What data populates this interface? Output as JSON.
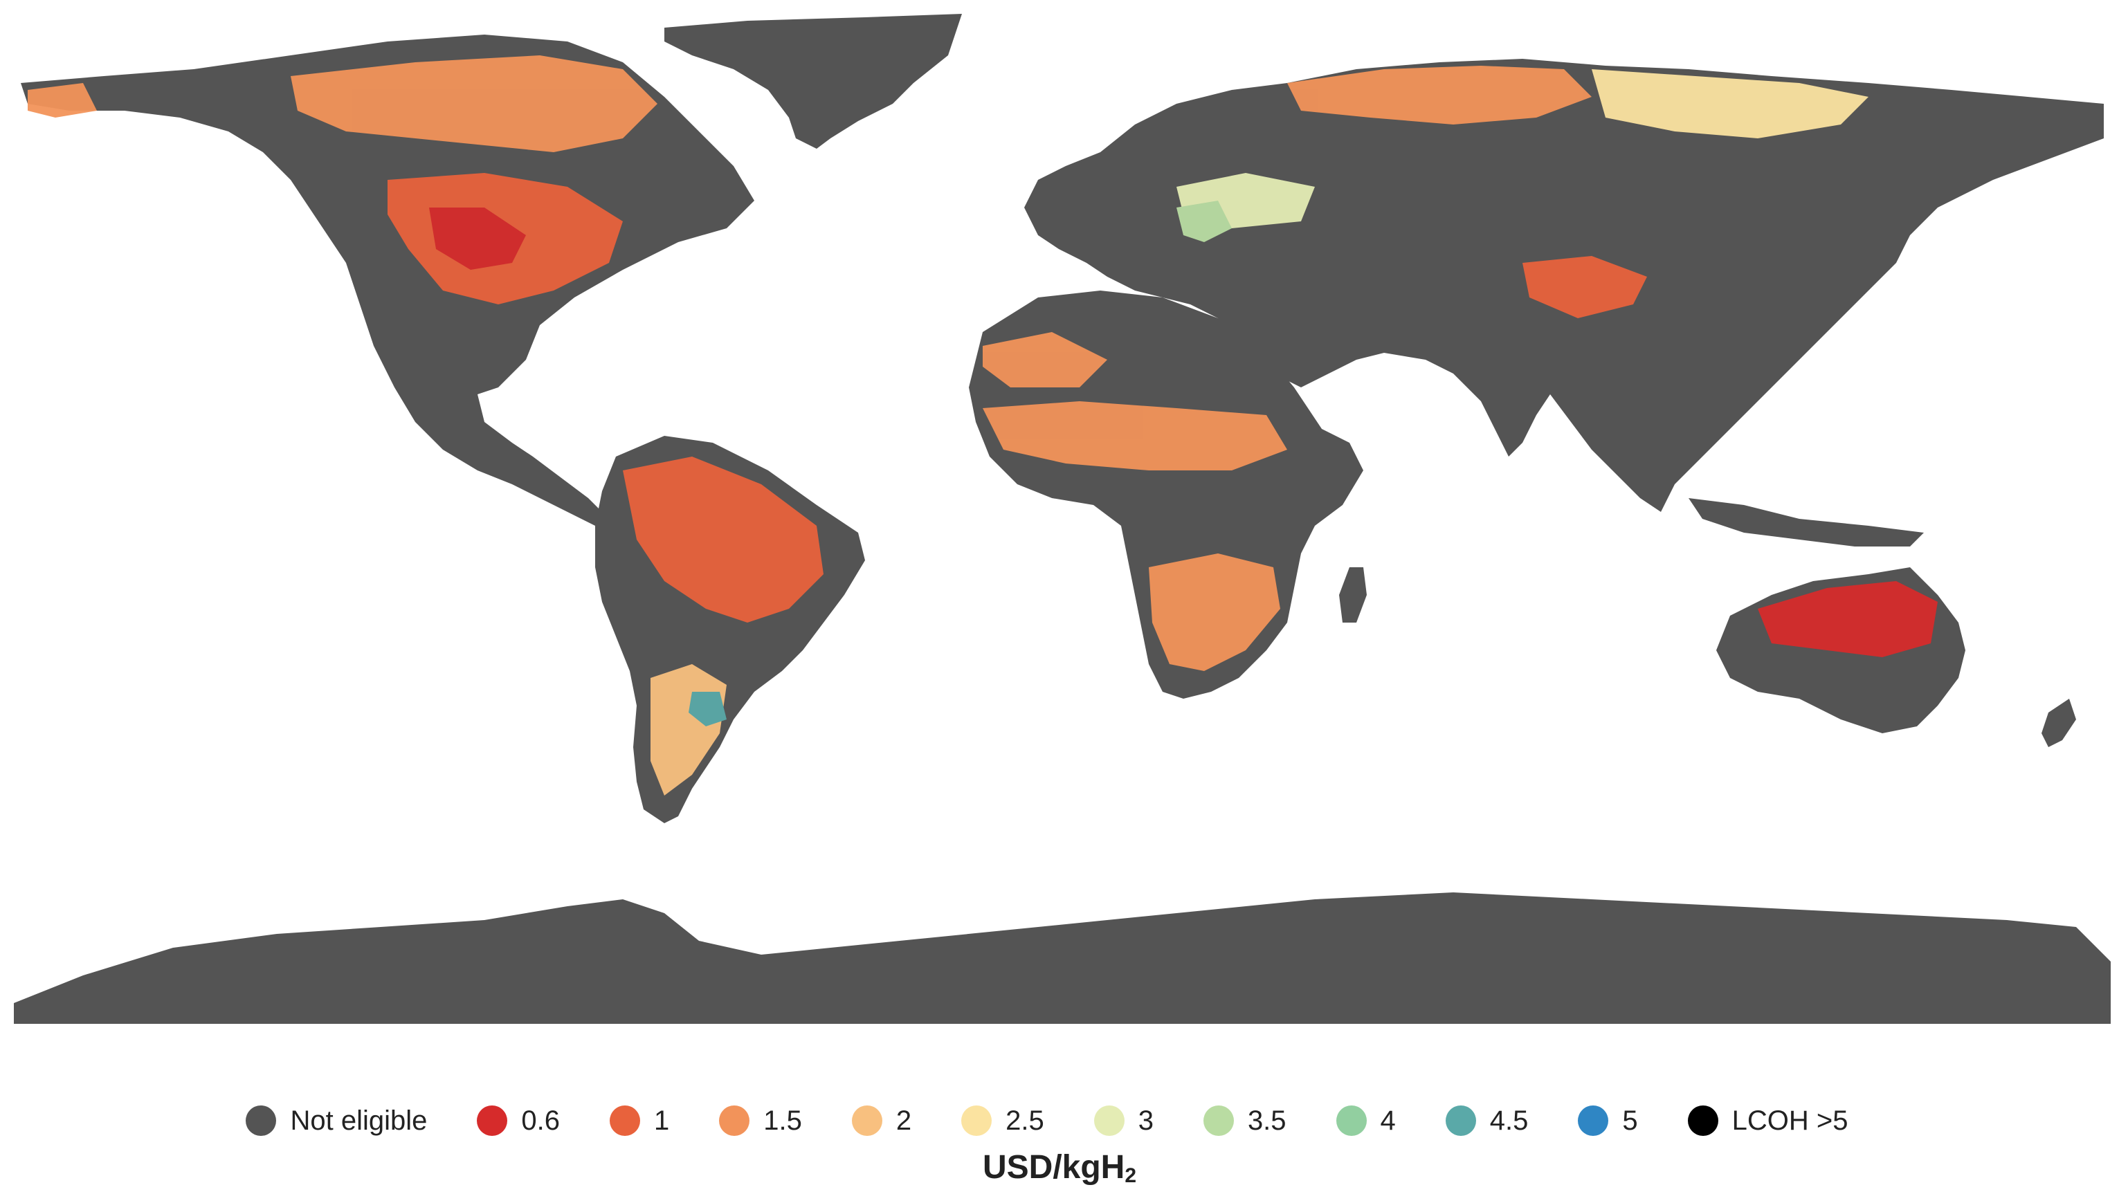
{
  "map": {
    "colors": {
      "land_not_eligible": "#545454",
      "c06": "#d62b2b",
      "c1": "#e8623c",
      "c15": "#f2935a",
      "c2": "#f8c07f",
      "c25": "#fbe3a0",
      "c3": "#e4ecb4",
      "c35": "#b9dca2",
      "c4": "#92cfa0",
      "c45": "#5aa9a8",
      "c5": "#2f86c4",
      "lcoh_gt5": "#000000"
    }
  },
  "legend": {
    "items": [
      {
        "label": "Not eligible",
        "color": "#545454"
      },
      {
        "label": "0.6",
        "color": "#d62b2b"
      },
      {
        "label": "1",
        "color": "#e8623c"
      },
      {
        "label": "1.5",
        "color": "#f2935a"
      },
      {
        "label": "2",
        "color": "#f8c07f"
      },
      {
        "label": "2.5",
        "color": "#fbe3a0"
      },
      {
        "label": "3",
        "color": "#e4ecb4"
      },
      {
        "label": "3.5",
        "color": "#b9dca2"
      },
      {
        "label": "4",
        "color": "#92cfa0"
      },
      {
        "label": "4.5",
        "color": "#5aa9a8"
      },
      {
        "label": "5",
        "color": "#2f86c4"
      },
      {
        "label": "LCOH >5",
        "color": "#000000"
      }
    ],
    "unit_main": "USD/kgH",
    "unit_sub": "2"
  }
}
